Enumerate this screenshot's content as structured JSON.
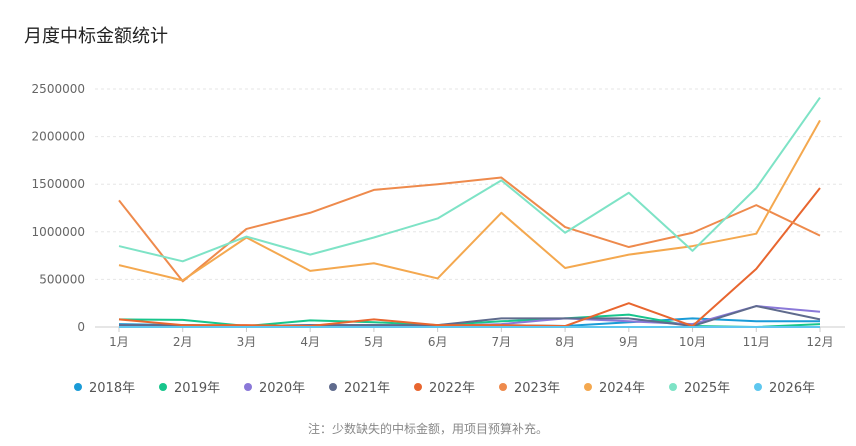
{
  "title": "月度中标金额统计",
  "note": "注：少数缺失的中标金额，用项目预算补充。",
  "chart_data": {
    "type": "line",
    "categories": [
      "1月",
      "2月",
      "3月",
      "4月",
      "5月",
      "6月",
      "7月",
      "8月",
      "9月",
      "10月",
      "11月",
      "12月"
    ],
    "ylim": [
      0,
      2500000
    ],
    "yticks": [
      "0",
      "500000",
      "1000000",
      "1500000",
      "2000000",
      "2500000"
    ],
    "ytick_values": [
      0,
      500000,
      1000000,
      1500000,
      2000000,
      2500000
    ],
    "grid": true,
    "legend_position": "bottom",
    "series": [
      {
        "name": "2018年",
        "color": "#1a9bd7",
        "values": [
          30000,
          20000,
          10000,
          10000,
          20000,
          10000,
          20000,
          10000,
          50000,
          90000,
          60000,
          60000
        ]
      },
      {
        "name": "2019年",
        "color": "#17c58c",
        "values": [
          80000,
          75000,
          10000,
          70000,
          50000,
          20000,
          60000,
          90000,
          130000,
          10000,
          0,
          30000
        ]
      },
      {
        "name": "2020年",
        "color": "#8a78d8",
        "values": [
          20000,
          10000,
          10000,
          20000,
          20000,
          10000,
          30000,
          90000,
          60000,
          30000,
          220000,
          160000
        ]
      },
      {
        "name": "2021年",
        "color": "#5f6b8d",
        "values": [
          20000,
          20000,
          10000,
          20000,
          20000,
          20000,
          90000,
          90000,
          90000,
          10000,
          220000,
          80000
        ]
      },
      {
        "name": "2022年",
        "color": "#e8662f",
        "values": [
          80000,
          20000,
          20000,
          10000,
          80000,
          20000,
          20000,
          10000,
          250000,
          10000,
          610000,
          1460000
        ]
      },
      {
        "name": "2023年",
        "color": "#ee8a4c",
        "values": [
          1330000,
          480000,
          1030000,
          1200000,
          1440000,
          1500000,
          1570000,
          1050000,
          840000,
          990000,
          1280000,
          960000
        ]
      },
      {
        "name": "2024年",
        "color": "#f4a84f",
        "values": [
          650000,
          490000,
          940000,
          590000,
          670000,
          510000,
          1200000,
          620000,
          760000,
          850000,
          980000,
          2170000
        ]
      },
      {
        "name": "2025年",
        "color": "#7ee3c6",
        "values": [
          850000,
          690000,
          950000,
          760000,
          940000,
          1140000,
          1540000,
          990000,
          1410000,
          800000,
          1460000,
          2410000
        ]
      },
      {
        "name": "2026年",
        "color": "#5ec7ef",
        "values": [
          0,
          0,
          0,
          0,
          0,
          0,
          0,
          0,
          0,
          0,
          0,
          0
        ]
      }
    ]
  }
}
